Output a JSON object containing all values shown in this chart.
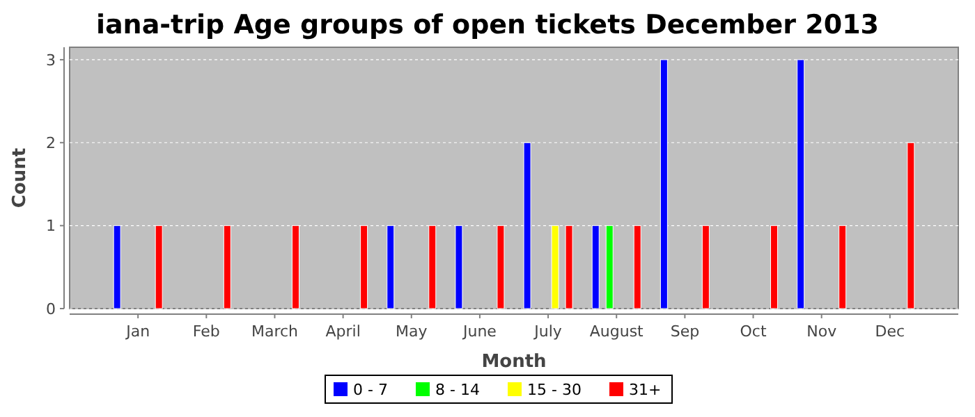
{
  "chart_data": {
    "type": "bar",
    "title": "iana-trip Age groups of open tickets December 2013",
    "xlabel": "Month",
    "ylabel": "Count",
    "categories": [
      "Jan",
      "Feb",
      "March",
      "April",
      "May",
      "June",
      "July",
      "August",
      "Sep",
      "Oct",
      "Nov",
      "Dec"
    ],
    "series": [
      {
        "name": "0 - 7",
        "color": "#0000ff",
        "values": [
          1,
          0,
          0,
          0,
          1,
          1,
          2,
          1,
          3,
          0,
          3,
          0
        ]
      },
      {
        "name": "8 - 14",
        "color": "#00ff00",
        "values": [
          0,
          0,
          0,
          0,
          0,
          0,
          0,
          1,
          0,
          0,
          0,
          0
        ]
      },
      {
        "name": "15 - 30",
        "color": "#ffff00",
        "values": [
          0,
          0,
          0,
          0,
          0,
          0,
          1,
          0,
          0,
          0,
          0,
          0
        ]
      },
      {
        "name": "31+",
        "color": "#ff0000",
        "values": [
          1,
          1,
          1,
          1,
          1,
          1,
          1,
          1,
          1,
          1,
          1,
          2
        ]
      }
    ],
    "ylim": [
      0,
      3.15
    ],
    "yticks": [
      0,
      1,
      2,
      3
    ],
    "grid": "y",
    "legend": "bottom"
  }
}
